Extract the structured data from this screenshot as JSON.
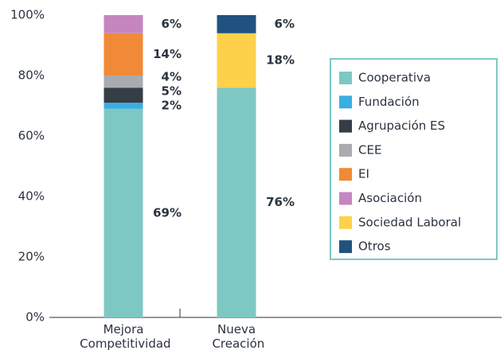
{
  "chart_data": {
    "type": "stacked_bar",
    "categories": [
      "Mejora Competitividad",
      "Nueva Creación"
    ],
    "series": [
      {
        "name": "Cooperativa",
        "color": "#7ec8c3",
        "values": [
          69,
          76
        ],
        "value_labels": [
          "69%",
          "76%"
        ]
      },
      {
        "name": "Fundación",
        "color": "#3aaee0",
        "values": [
          2,
          null
        ],
        "value_labels": [
          "2%",
          null
        ]
      },
      {
        "name": "Agrupación ES",
        "color": "#353d47",
        "values": [
          5,
          null
        ],
        "value_labels": [
          "5%",
          null
        ]
      },
      {
        "name": "CEE",
        "color": "#a9abb0",
        "values": [
          4,
          null
        ],
        "value_labels": [
          "4%",
          null
        ]
      },
      {
        "name": "EI",
        "color": "#f08a36",
        "values": [
          14,
          null
        ],
        "value_labels": [
          "14%",
          null
        ]
      },
      {
        "name": "Asociación",
        "color": "#c585bf",
        "values": [
          6,
          null
        ],
        "value_labels": [
          "6%",
          null
        ]
      },
      {
        "name": "Sociedad Laboral",
        "color": "#fdd14a",
        "values": [
          null,
          18
        ],
        "value_labels": [
          null,
          "18%"
        ]
      },
      {
        "name": "Otros",
        "color": "#21527f",
        "values": [
          null,
          6
        ],
        "value_labels": [
          null,
          "6%"
        ]
      }
    ],
    "ylim": [
      0,
      100
    ],
    "yticks": [
      {
        "value": 0,
        "label": "0%"
      },
      {
        "value": 20,
        "label": "20%"
      },
      {
        "value": 40,
        "label": "40%"
      },
      {
        "value": 60,
        "label": "60%"
      },
      {
        "value": 80,
        "label": "80%"
      },
      {
        "value": 100,
        "label": "100%"
      }
    ],
    "grid": false,
    "legend": "right"
  }
}
